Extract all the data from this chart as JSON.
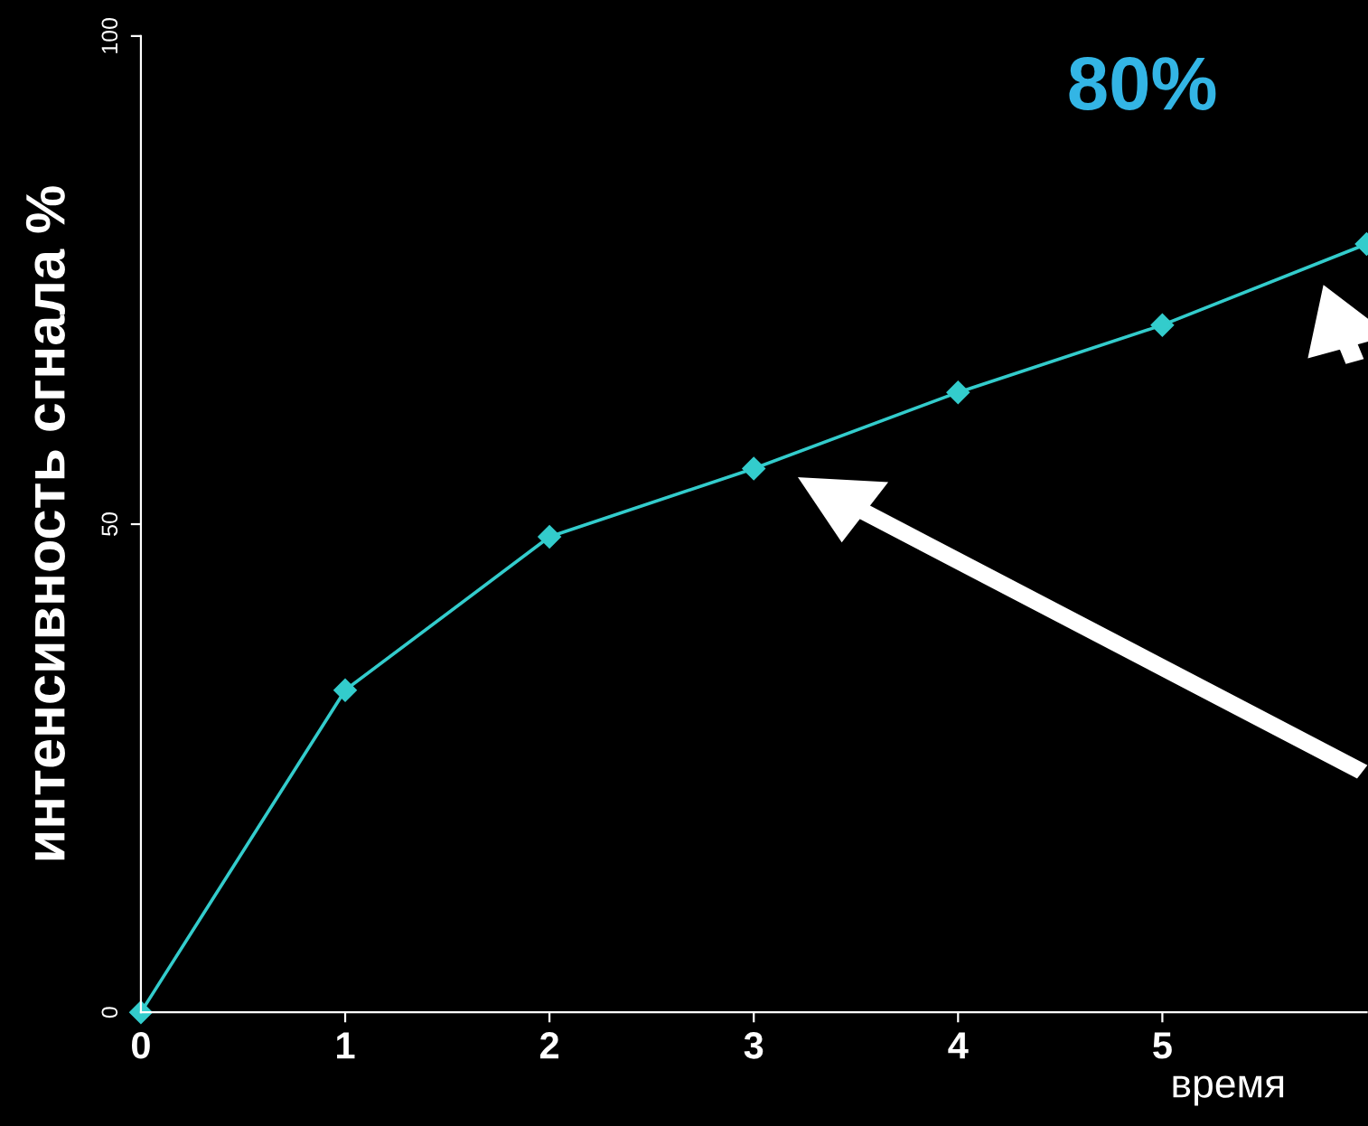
{
  "chart_data": {
    "type": "line",
    "xlabel": "время",
    "ylabel": "интенсивность сгнала %",
    "x": [
      0,
      1,
      2,
      3,
      4,
      5,
      6
    ],
    "series": [
      {
        "color": "#33cccc",
        "values": [
          0,
          33,
          48.7,
          55.7,
          63.5,
          70.4,
          78.7
        ]
      }
    ],
    "xlim": [
      0,
      6
    ],
    "xticks": [
      0,
      1,
      2,
      3,
      4,
      5
    ],
    "ylim": [
      0,
      100
    ],
    "yticks": [
      0,
      50,
      100
    ],
    "marker": "diamond",
    "line_style": "solid",
    "grid": false,
    "legend": false,
    "annotations": [
      "80%"
    ]
  }
}
